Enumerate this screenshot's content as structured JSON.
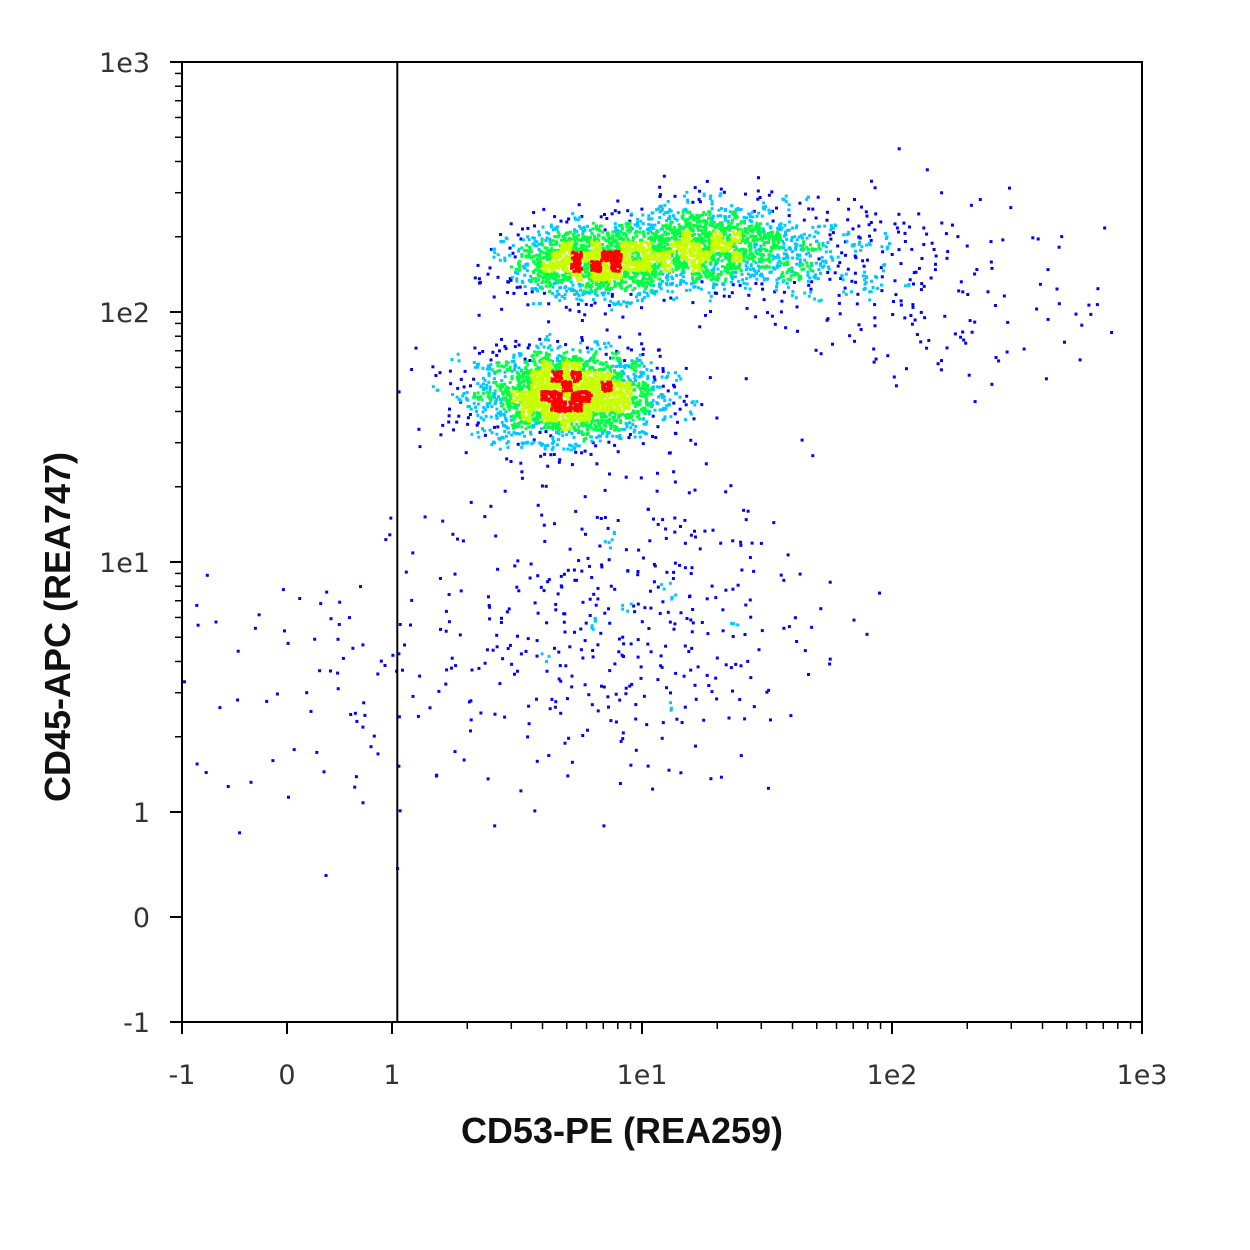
{
  "chart_data": {
    "type": "scatter",
    "subtype": "flow-cytometry density dot plot",
    "title": "",
    "xlabel": "CD53-PE (REA259)",
    "ylabel": "CD45-APC (REA747)",
    "x_scale": "biexponential (linear near 0, log above 1)",
    "y_scale": "biexponential (linear near 0, log above 1)",
    "xlim": [
      -1,
      1000
    ],
    "ylim": [
      -1,
      1000
    ],
    "x_ticks": [
      {
        "value": -1,
        "label": "-1"
      },
      {
        "value": 0,
        "label": "0"
      },
      {
        "value": 1,
        "label": "1"
      },
      {
        "value": 10,
        "label": "1e1"
      },
      {
        "value": 100,
        "label": "1e2"
      },
      {
        "value": 1000,
        "label": "1e3"
      }
    ],
    "y_ticks": [
      {
        "value": -1,
        "label": "-1"
      },
      {
        "value": 0,
        "label": "0"
      },
      {
        "value": 1,
        "label": "1"
      },
      {
        "value": 10,
        "label": "1e1"
      },
      {
        "value": 100,
        "label": "1e2"
      },
      {
        "value": 1000,
        "label": "1e3"
      }
    ],
    "gate_line_x": 1.05,
    "density_colormap": [
      "#0000ff",
      "#00c8ff",
      "#00ff40",
      "#c8ff00",
      "#ff0000"
    ],
    "populations": [
      {
        "center_x": 5.0,
        "center_y": 47,
        "points": 2600
      },
      {
        "center_x": 6.5,
        "center_y": 160,
        "points": 1700
      },
      {
        "center_x": 18,
        "center_y": 190,
        "points": 1200
      },
      {
        "center_x": 40,
        "center_y": 170,
        "points": 450
      },
      {
        "center_x": 8,
        "center_y": 6,
        "points": 420
      },
      {
        "center_x": 150,
        "center_y": 120,
        "points": 150
      },
      {
        "center_x": 0.6,
        "center_y": 3,
        "points": 90
      }
    ],
    "grid": false,
    "legend": "none"
  }
}
